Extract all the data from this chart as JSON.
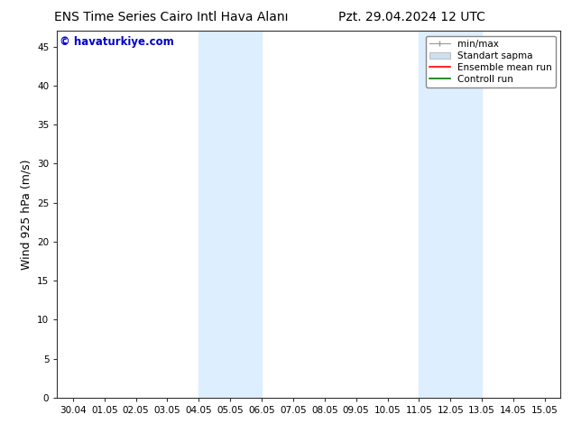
{
  "title_left": "ENS Time Series Cairo Intl Hava Alanı",
  "title_right": "Pzt. 29.04.2024 12 UTC",
  "ylabel": "Wind 925 hPa (m/s)",
  "watermark": "© havaturkiye.com",
  "watermark_color": "#0000cc",
  "background_color": "#ffffff",
  "plot_bg_color": "#ffffff",
  "shaded_bands": [
    {
      "x_start": 4.0,
      "x_end": 6.0,
      "color": "#ddeeff"
    },
    {
      "x_start": 11.0,
      "x_end": 13.0,
      "color": "#ddeeff"
    }
  ],
  "x_ticks": [
    0,
    1,
    2,
    3,
    4,
    5,
    6,
    7,
    8,
    9,
    10,
    11,
    12,
    13,
    14,
    15
  ],
  "x_tick_labels": [
    "30.04",
    "01.05",
    "02.05",
    "03.05",
    "04.05",
    "05.05",
    "06.05",
    "07.05",
    "08.05",
    "09.05",
    "10.05",
    "11.05",
    "12.05",
    "13.05",
    "14.05",
    "15.05"
  ],
  "ylim": [
    0,
    47
  ],
  "xlim": [
    -0.5,
    15.5
  ],
  "y_ticks": [
    0,
    5,
    10,
    15,
    20,
    25,
    30,
    35,
    40,
    45
  ],
  "title_fontsize": 10,
  "axis_label_fontsize": 9,
  "tick_fontsize": 7.5,
  "watermark_fontsize": 8.5,
  "legend_fontsize": 7.5
}
